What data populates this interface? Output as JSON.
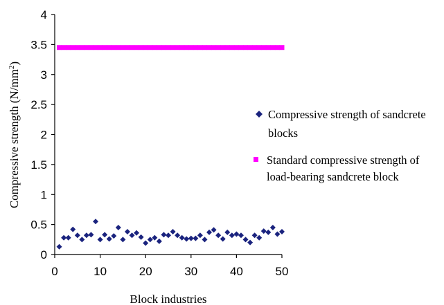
{
  "chart_data": {
    "type": "scatter",
    "title": "",
    "xlabel": "Block industries",
    "ylabel_main": "Compressive strength (N/mm",
    "ylabel_sup": "2",
    "ylabel_close": ")",
    "xlim": [
      0,
      50
    ],
    "ylim": [
      0,
      4
    ],
    "x_ticks": [
      "0",
      "10",
      "20",
      "30",
      "40",
      "50"
    ],
    "y_ticks": [
      "0",
      "0.5",
      "1",
      "1.5",
      "2",
      "2.5",
      "3",
      "3.5",
      "4"
    ],
    "grid": false,
    "legend_position": "right",
    "series": [
      {
        "name": "Compressive strength of sandcrete blocks",
        "legend_lines": [
          "Compressive strength of sandcrete",
          "blocks"
        ],
        "marker": "diamond",
        "color": "#1a237e",
        "x": [
          1,
          2,
          3,
          4,
          5,
          6,
          7,
          8,
          9,
          10,
          11,
          12,
          13,
          14,
          15,
          16,
          17,
          18,
          19,
          20,
          21,
          22,
          23,
          24,
          25,
          26,
          27,
          28,
          29,
          30,
          31,
          32,
          33,
          34,
          35,
          36,
          37,
          38,
          39,
          40,
          41,
          42,
          43,
          44,
          45,
          46,
          47,
          48,
          49,
          50
        ],
        "y": [
          0.13,
          0.28,
          0.28,
          0.42,
          0.32,
          0.25,
          0.32,
          0.33,
          0.55,
          0.25,
          0.33,
          0.26,
          0.31,
          0.45,
          0.25,
          0.38,
          0.32,
          0.36,
          0.29,
          0.19,
          0.25,
          0.28,
          0.22,
          0.33,
          0.32,
          0.38,
          0.32,
          0.28,
          0.26,
          0.27,
          0.27,
          0.32,
          0.25,
          0.37,
          0.41,
          0.32,
          0.26,
          0.37,
          0.32,
          0.34,
          0.32,
          0.25,
          0.2,
          0.32,
          0.28,
          0.39,
          0.37,
          0.45,
          0.34,
          0.38
        ]
      },
      {
        "name": "Standard compressive strength of load-bearing sandcrete block",
        "legend_lines": [
          "Standard compressive strength of",
          "load-bearing sandcrete block"
        ],
        "marker": "square",
        "color": "#ff00ff",
        "x": [
          1,
          2,
          3,
          4,
          5,
          6,
          7,
          8,
          9,
          10,
          11,
          12,
          13,
          14,
          15,
          16,
          17,
          18,
          19,
          20,
          21,
          22,
          23,
          24,
          25,
          26,
          27,
          28,
          29,
          30,
          31,
          32,
          33,
          34,
          35,
          36,
          37,
          38,
          39,
          40,
          41,
          42,
          43,
          44,
          45,
          46,
          47,
          48,
          49,
          50
        ],
        "y": [
          3.45,
          3.45,
          3.45,
          3.45,
          3.45,
          3.45,
          3.45,
          3.45,
          3.45,
          3.45,
          3.45,
          3.45,
          3.45,
          3.45,
          3.45,
          3.45,
          3.45,
          3.45,
          3.45,
          3.45,
          3.45,
          3.45,
          3.45,
          3.45,
          3.45,
          3.45,
          3.45,
          3.45,
          3.45,
          3.45,
          3.45,
          3.45,
          3.45,
          3.45,
          3.45,
          3.45,
          3.45,
          3.45,
          3.45,
          3.45,
          3.45,
          3.45,
          3.45,
          3.45,
          3.45,
          3.45,
          3.45,
          3.45,
          3.45,
          3.45
        ]
      }
    ]
  }
}
